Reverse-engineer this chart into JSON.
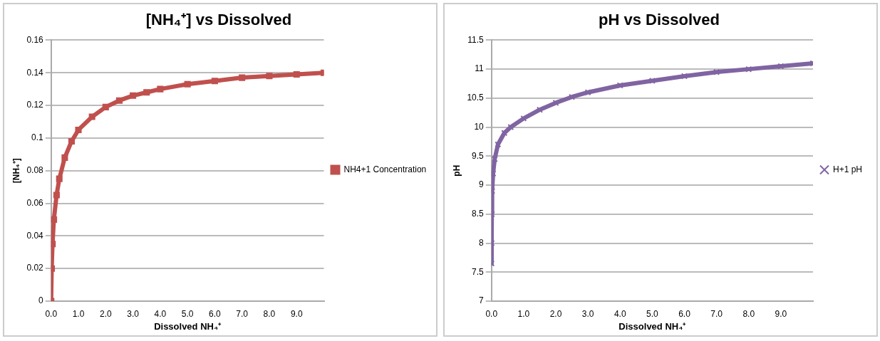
{
  "chart_data": [
    {
      "type": "line",
      "title": "[NH₄⁺] vs Dissolved",
      "xlabel": "Dissolved NH₄⁺",
      "ylabel": "[NH₄⁺]",
      "marker": "square",
      "grid": "y",
      "legend": "right",
      "xlim": [
        0,
        10
      ],
      "xticks": [
        {
          "value": 0,
          "label": "0.0"
        },
        {
          "value": 1,
          "label": "1.0"
        },
        {
          "value": 2,
          "label": "2.0"
        },
        {
          "value": 3,
          "label": "3.0"
        },
        {
          "value": 4,
          "label": "4.0"
        },
        {
          "value": 5,
          "label": "5.0"
        },
        {
          "value": 6,
          "label": "6.0"
        },
        {
          "value": 7,
          "label": "7.0"
        },
        {
          "value": 8,
          "label": "8.0"
        },
        {
          "value": 9,
          "label": "9.0"
        }
      ],
      "ylim": [
        0,
        0.16
      ],
      "yticks": [
        0,
        0.02,
        0.04,
        0.06,
        0.08,
        0.1,
        0.12,
        0.14,
        0.16
      ],
      "series": [
        {
          "name": "NH4+1 Concentration",
          "color": "#c0504d",
          "x": [
            0,
            0.02,
            0.05,
            0.1,
            0.2,
            0.3,
            0.5,
            0.75,
            1,
            1.5,
            2,
            2.5,
            3,
            3.5,
            4,
            5,
            6,
            7,
            8,
            9,
            10
          ],
          "values": [
            0,
            0.02,
            0.035,
            0.05,
            0.065,
            0.075,
            0.088,
            0.098,
            0.105,
            0.113,
            0.119,
            0.123,
            0.126,
            0.128,
            0.13,
            0.133,
            0.135,
            0.137,
            0.138,
            0.139,
            0.14
          ]
        }
      ]
    },
    {
      "type": "line",
      "title": "pH vs Dissolved",
      "xlabel": "Dissolved NH₄⁺",
      "ylabel": "pH",
      "marker": "cross",
      "grid": "y",
      "legend": "right",
      "xlim": [
        0,
        10
      ],
      "xticks": [
        {
          "value": 0,
          "label": "0.0"
        },
        {
          "value": 1,
          "label": "1.0"
        },
        {
          "value": 2,
          "label": "2.0"
        },
        {
          "value": 3,
          "label": "3.0"
        },
        {
          "value": 4,
          "label": "4.0"
        },
        {
          "value": 5,
          "label": "5.0"
        },
        {
          "value": 6,
          "label": "6.0"
        },
        {
          "value": 7,
          "label": "7.0"
        },
        {
          "value": 8,
          "label": "8.0"
        },
        {
          "value": 9,
          "label": "9.0"
        }
      ],
      "ylim": [
        7,
        11.5
      ],
      "yticks": [
        7,
        7.5,
        8,
        8.5,
        9,
        9.5,
        10,
        10.5,
        11,
        11.5
      ],
      "series": [
        {
          "name": "H+1 pH",
          "color": "#8064a2",
          "x": [
            0,
            0.005,
            0.01,
            0.02,
            0.05,
            0.1,
            0.2,
            0.4,
            0.6,
            1,
            1.5,
            2,
            2.5,
            3,
            4,
            5,
            6,
            7,
            8,
            9,
            10
          ],
          "values": [
            7.65,
            8,
            8.5,
            8.9,
            9.2,
            9.45,
            9.7,
            9.9,
            10,
            10.15,
            10.3,
            10.42,
            10.52,
            10.6,
            10.72,
            10.8,
            10.88,
            10.95,
            11,
            11.05,
            11.1
          ]
        }
      ]
    }
  ]
}
